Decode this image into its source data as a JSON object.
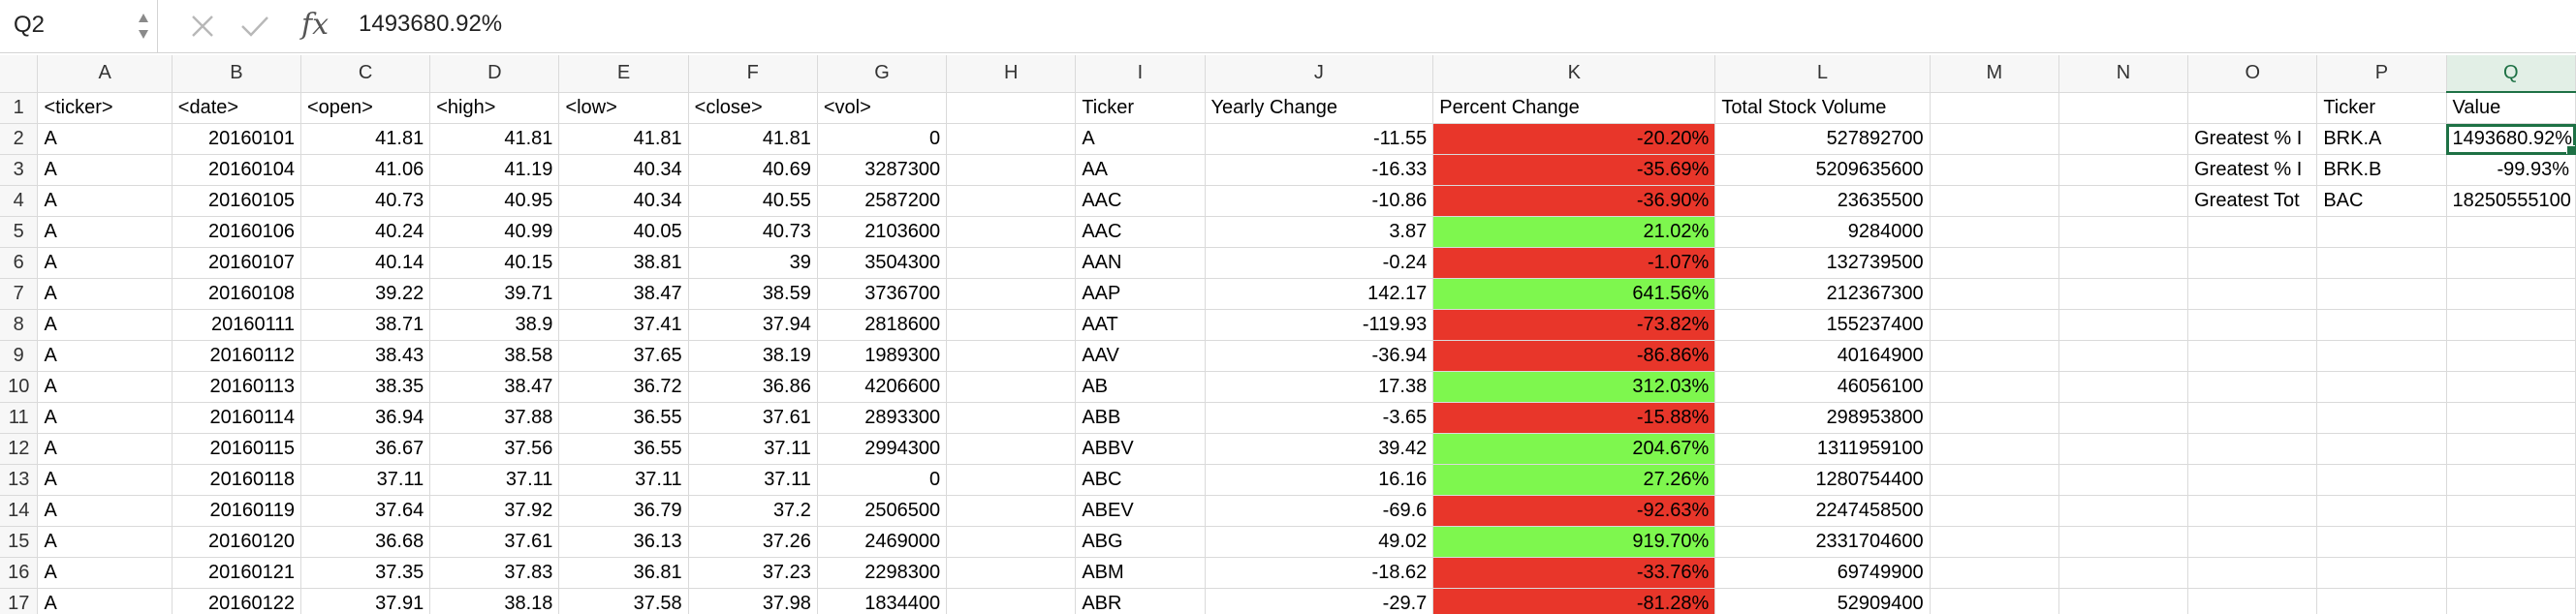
{
  "formula_bar": {
    "name_box": "Q2",
    "cancel_icon": "close-icon",
    "confirm_icon": "checkmark-icon",
    "fx_label": "fx",
    "formula": "1493680.92%"
  },
  "colors": {
    "negative_fill": "#e8362a",
    "positive_fill": "#7ef74e",
    "selection": "#1e7145"
  },
  "sheet": {
    "active_column": "Q",
    "active_cell": "Q2",
    "columns": [
      "A",
      "B",
      "C",
      "D",
      "E",
      "F",
      "G",
      "H",
      "I",
      "J",
      "K",
      "L",
      "M",
      "N",
      "O",
      "P",
      "Q"
    ],
    "rows": [
      {
        "n": "1",
        "A": "<ticker>",
        "B": "<date>",
        "C": "<open>",
        "D": "<high>",
        "E": "<low>",
        "F": "<close>",
        "G": "<vol>",
        "H": "",
        "I": "Ticker",
        "J": "Yearly Change",
        "K": "Percent Change",
        "L": "Total Stock Volume",
        "M": "",
        "N": "",
        "O": "",
        "P": "Ticker",
        "Q": "Value"
      },
      {
        "n": "2",
        "A": "A",
        "B": "20160101",
        "C": "41.81",
        "D": "41.81",
        "E": "41.81",
        "F": "41.81",
        "G": "0",
        "H": "",
        "I": "A",
        "J": "-11.55",
        "K": "-20.20%",
        "L": "527892700",
        "M": "",
        "N": "",
        "O": "Greatest % I",
        "P": "BRK.A",
        "Q": "1493680.92%"
      },
      {
        "n": "3",
        "A": "A",
        "B": "20160104",
        "C": "41.06",
        "D": "41.19",
        "E": "40.34",
        "F": "40.69",
        "G": "3287300",
        "H": "",
        "I": "AA",
        "J": "-16.33",
        "K": "-35.69%",
        "L": "5209635600",
        "M": "",
        "N": "",
        "O": "Greatest % I",
        "P": "BRK.B",
        "Q": "-99.93%"
      },
      {
        "n": "4",
        "A": "A",
        "B": "20160105",
        "C": "40.73",
        "D": "40.95",
        "E": "40.34",
        "F": "40.55",
        "G": "2587200",
        "H": "",
        "I": "AAC",
        "J": "-10.86",
        "K": "-36.90%",
        "L": "23635500",
        "M": "",
        "N": "",
        "O": "Greatest Tot",
        "P": "BAC",
        "Q": "18250555100"
      },
      {
        "n": "5",
        "A": "A",
        "B": "20160106",
        "C": "40.24",
        "D": "40.99",
        "E": "40.05",
        "F": "40.73",
        "G": "2103600",
        "H": "",
        "I": "AAC",
        "J": "3.87",
        "K": "21.02%",
        "L": "9284000",
        "M": "",
        "N": "",
        "O": "",
        "P": "",
        "Q": ""
      },
      {
        "n": "6",
        "A": "A",
        "B": "20160107",
        "C": "40.14",
        "D": "40.15",
        "E": "38.81",
        "F": "39",
        "G": "3504300",
        "H": "",
        "I": "AAN",
        "J": "-0.24",
        "K": "-1.07%",
        "L": "132739500",
        "M": "",
        "N": "",
        "O": "",
        "P": "",
        "Q": ""
      },
      {
        "n": "7",
        "A": "A",
        "B": "20160108",
        "C": "39.22",
        "D": "39.71",
        "E": "38.47",
        "F": "38.59",
        "G": "3736700",
        "H": "",
        "I": "AAP",
        "J": "142.17",
        "K": "641.56%",
        "L": "212367300",
        "M": "",
        "N": "",
        "O": "",
        "P": "",
        "Q": ""
      },
      {
        "n": "8",
        "A": "A",
        "B": "20160111",
        "C": "38.71",
        "D": "38.9",
        "E": "37.41",
        "F": "37.94",
        "G": "2818600",
        "H": "",
        "I": "AAT",
        "J": "-119.93",
        "K": "-73.82%",
        "L": "155237400",
        "M": "",
        "N": "",
        "O": "",
        "P": "",
        "Q": ""
      },
      {
        "n": "9",
        "A": "A",
        "B": "20160112",
        "C": "38.43",
        "D": "38.58",
        "E": "37.65",
        "F": "38.19",
        "G": "1989300",
        "H": "",
        "I": "AAV",
        "J": "-36.94",
        "K": "-86.86%",
        "L": "40164900",
        "M": "",
        "N": "",
        "O": "",
        "P": "",
        "Q": ""
      },
      {
        "n": "10",
        "A": "A",
        "B": "20160113",
        "C": "38.35",
        "D": "38.47",
        "E": "36.72",
        "F": "36.86",
        "G": "4206600",
        "H": "",
        "I": "AB",
        "J": "17.38",
        "K": "312.03%",
        "L": "46056100",
        "M": "",
        "N": "",
        "O": "",
        "P": "",
        "Q": ""
      },
      {
        "n": "11",
        "A": "A",
        "B": "20160114",
        "C": "36.94",
        "D": "37.88",
        "E": "36.55",
        "F": "37.61",
        "G": "2893300",
        "H": "",
        "I": "ABB",
        "J": "-3.65",
        "K": "-15.88%",
        "L": "298953800",
        "M": "",
        "N": "",
        "O": "",
        "P": "",
        "Q": ""
      },
      {
        "n": "12",
        "A": "A",
        "B": "20160115",
        "C": "36.67",
        "D": "37.56",
        "E": "36.55",
        "F": "37.11",
        "G": "2994300",
        "H": "",
        "I": "ABBV",
        "J": "39.42",
        "K": "204.67%",
        "L": "1311959100",
        "M": "",
        "N": "",
        "O": "",
        "P": "",
        "Q": ""
      },
      {
        "n": "13",
        "A": "A",
        "B": "20160118",
        "C": "37.11",
        "D": "37.11",
        "E": "37.11",
        "F": "37.11",
        "G": "0",
        "H": "",
        "I": "ABC",
        "J": "16.16",
        "K": "27.26%",
        "L": "1280754400",
        "M": "",
        "N": "",
        "O": "",
        "P": "",
        "Q": ""
      },
      {
        "n": "14",
        "A": "A",
        "B": "20160119",
        "C": "37.64",
        "D": "37.92",
        "E": "36.79",
        "F": "37.2",
        "G": "2506500",
        "H": "",
        "I": "ABEV",
        "J": "-69.6",
        "K": "-92.63%",
        "L": "2247458500",
        "M": "",
        "N": "",
        "O": "",
        "P": "",
        "Q": ""
      },
      {
        "n": "15",
        "A": "A",
        "B": "20160120",
        "C": "36.68",
        "D": "37.61",
        "E": "36.13",
        "F": "37.26",
        "G": "2469000",
        "H": "",
        "I": "ABG",
        "J": "49.02",
        "K": "919.70%",
        "L": "2331704600",
        "M": "",
        "N": "",
        "O": "",
        "P": "",
        "Q": ""
      },
      {
        "n": "16",
        "A": "A",
        "B": "20160121",
        "C": "37.35",
        "D": "37.83",
        "E": "36.81",
        "F": "37.23",
        "G": "2298300",
        "H": "",
        "I": "ABM",
        "J": "-18.62",
        "K": "-33.76%",
        "L": "69749900",
        "M": "",
        "N": "",
        "O": "",
        "P": "",
        "Q": ""
      },
      {
        "n": "17",
        "A": "A",
        "B": "20160122",
        "C": "37.91",
        "D": "38.18",
        "E": "37.58",
        "F": "37.98",
        "G": "1834400",
        "H": "",
        "I": "ABR",
        "J": "-29.7",
        "K": "-81.28%",
        "L": "52909400",
        "M": "",
        "N": "",
        "O": "",
        "P": "",
        "Q": ""
      }
    ]
  }
}
